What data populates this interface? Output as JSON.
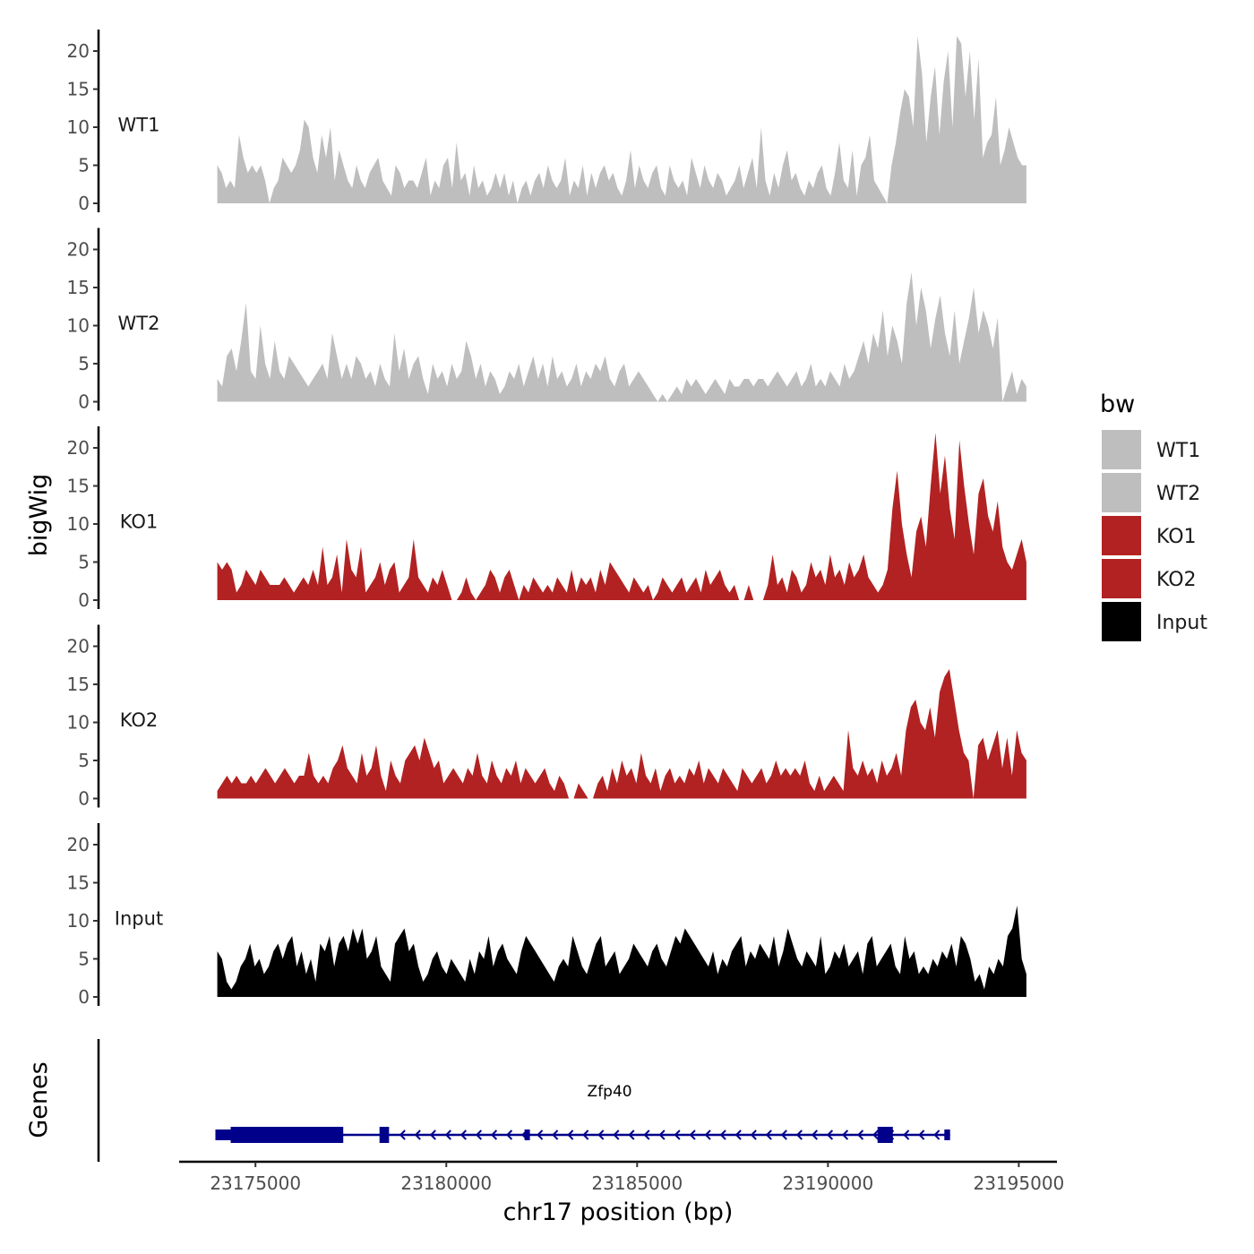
{
  "chart_data": {
    "type": "area",
    "chromosome": "chr17",
    "xlabel": "chr17 position (bp)",
    "ylabel": "bigWig",
    "genes_label": "Genes",
    "xlim": [
      23173000,
      23196000
    ],
    "x_ticks": [
      23175000,
      23180000,
      23185000,
      23190000,
      23195000
    ],
    "x_tick_labels": [
      "23175000",
      "23180000",
      "23185000",
      "23190000",
      "23195000"
    ],
    "ylim": [
      0,
      23
    ],
    "y_ticks": [
      0,
      5,
      10,
      15,
      20
    ],
    "y_tick_labels": [
      "0",
      "5",
      "10",
      "15",
      "20"
    ],
    "region": [
      23174000,
      23195200
    ],
    "legend": {
      "title": "bw",
      "items": [
        {
          "label": "WT1",
          "color": "#bebebe"
        },
        {
          "label": "WT2",
          "color": "#bebebe"
        },
        {
          "label": "KO1",
          "color": "#b22222"
        },
        {
          "label": "KO2",
          "color": "#b22222"
        },
        {
          "label": "Input",
          "color": "#000000"
        }
      ]
    },
    "tracks": [
      {
        "name": "WT1",
        "color": "#bebebe",
        "values": [
          5,
          4,
          2,
          3,
          2,
          9,
          6,
          4,
          5,
          4,
          5,
          3,
          0,
          2,
          3,
          6,
          5,
          4,
          5,
          7,
          11,
          10,
          6,
          4,
          9,
          6,
          10,
          3,
          7,
          5,
          3,
          2,
          5,
          3,
          2,
          4,
          5,
          6,
          3,
          2,
          1,
          5,
          4,
          2,
          3,
          3,
          2,
          4,
          6,
          1,
          3,
          2,
          5,
          6,
          2,
          8,
          3,
          4,
          1,
          5,
          2,
          3,
          1,
          2,
          4,
          2,
          4,
          1,
          3,
          0,
          2,
          3,
          1,
          3,
          4,
          2,
          5,
          3,
          2,
          3,
          6,
          1,
          3,
          2,
          5,
          1,
          4,
          2,
          4,
          5,
          3,
          4,
          2,
          1,
          3,
          7,
          2,
          5,
          3,
          2,
          4,
          5,
          2,
          1,
          5,
          3,
          2,
          3,
          1,
          6,
          4,
          2,
          5,
          3,
          2,
          4,
          3,
          1,
          2,
          3,
          5,
          2,
          4,
          6,
          2,
          10,
          3,
          1,
          4,
          2,
          5,
          7,
          3,
          4,
          2,
          1,
          3,
          2,
          4,
          5,
          2,
          1,
          4,
          8,
          3,
          2,
          7,
          1,
          5,
          6,
          9,
          3,
          2,
          1,
          0,
          5,
          8,
          12,
          15,
          14,
          10,
          22,
          17,
          8,
          14,
          18,
          9,
          16,
          20,
          10,
          22,
          21,
          14,
          20,
          11,
          19,
          6,
          8,
          9,
          14,
          5,
          7,
          10,
          8,
          6,
          5,
          5
        ]
      },
      {
        "name": "WT2",
        "color": "#bebebe",
        "values": [
          3,
          2,
          6,
          7,
          4,
          8,
          13,
          4,
          3,
          10,
          5,
          3,
          8,
          4,
          3,
          6,
          5,
          4,
          3,
          2,
          3,
          4,
          5,
          3,
          9,
          6,
          3,
          5,
          3,
          6,
          5,
          3,
          4,
          2,
          5,
          3,
          2,
          9,
          4,
          7,
          3,
          5,
          6,
          3,
          1,
          5,
          3,
          4,
          2,
          5,
          3,
          4,
          8,
          6,
          3,
          5,
          2,
          4,
          3,
          1,
          2,
          4,
          3,
          5,
          2,
          4,
          6,
          3,
          5,
          2,
          6,
          3,
          4,
          2,
          3,
          5,
          2,
          4,
          3,
          5,
          4,
          6,
          3,
          2,
          4,
          5,
          2,
          3,
          4,
          3,
          2,
          1,
          0,
          1,
          0,
          1,
          2,
          1,
          3,
          2,
          3,
          2,
          1,
          2,
          3,
          2,
          1,
          3,
          2,
          2,
          3,
          3,
          2,
          3,
          3,
          2,
          3,
          4,
          3,
          2,
          3,
          4,
          2,
          3,
          5,
          2,
          3,
          2,
          4,
          3,
          2,
          5,
          3,
          4,
          6,
          8,
          5,
          9,
          7,
          12,
          6,
          10,
          8,
          5,
          13,
          17,
          10,
          15,
          12,
          7,
          11,
          14,
          9,
          6,
          12,
          5,
          8,
          11,
          15,
          9,
          12,
          10,
          7,
          11,
          0,
          2,
          4,
          1,
          3,
          2
        ]
      },
      {
        "name": "KO1",
        "color": "#b22222",
        "values": [
          5,
          4,
          5,
          4,
          1,
          2,
          4,
          3,
          2,
          4,
          3,
          2,
          2,
          2,
          3,
          2,
          1,
          2,
          3,
          2,
          4,
          2,
          7,
          2,
          3,
          6,
          1,
          8,
          4,
          3,
          7,
          1,
          2,
          3,
          5,
          2,
          4,
          5,
          1,
          2,
          3,
          8,
          3,
          2,
          1,
          3,
          2,
          4,
          2,
          0,
          0,
          1,
          3,
          1,
          0,
          1,
          2,
          4,
          3,
          1,
          3,
          4,
          2,
          0,
          2,
          1,
          3,
          2,
          1,
          2,
          1,
          3,
          2,
          1,
          4,
          1,
          3,
          2,
          3,
          1,
          4,
          2,
          5,
          4,
          3,
          2,
          1,
          3,
          2,
          1,
          2,
          0,
          1,
          3,
          2,
          1,
          2,
          3,
          1,
          2,
          3,
          1,
          4,
          2,
          3,
          4,
          2,
          1,
          2,
          0,
          0,
          2,
          0,
          0,
          0,
          2,
          6,
          2,
          3,
          1,
          4,
          3,
          1,
          2,
          5,
          3,
          4,
          2,
          6,
          3,
          4,
          2,
          5,
          3,
          4,
          6,
          3,
          2,
          1,
          2,
          4,
          12,
          17,
          10,
          6,
          3,
          9,
          11,
          7,
          15,
          22,
          14,
          19,
          12,
          8,
          21,
          15,
          10,
          6,
          14,
          16,
          11,
          9,
          13,
          7,
          5,
          4,
          6,
          8,
          5
        ]
      },
      {
        "name": "KO2",
        "color": "#b22222",
        "values": [
          1,
          2,
          3,
          2,
          3,
          2,
          2,
          3,
          2,
          3,
          4,
          3,
          2,
          3,
          4,
          3,
          2,
          3,
          3,
          6,
          3,
          2,
          3,
          2,
          4,
          5,
          7,
          4,
          3,
          2,
          6,
          3,
          4,
          7,
          3,
          1,
          5,
          3,
          2,
          5,
          6,
          7,
          5,
          8,
          6,
          4,
          5,
          2,
          3,
          4,
          3,
          2,
          4,
          3,
          6,
          3,
          2,
          5,
          3,
          2,
          4,
          3,
          5,
          2,
          4,
          3,
          2,
          3,
          4,
          2,
          1,
          3,
          2,
          0,
          0,
          2,
          1,
          0,
          0,
          2,
          3,
          1,
          4,
          2,
          5,
          3,
          4,
          2,
          6,
          3,
          2,
          4,
          1,
          3,
          4,
          2,
          3,
          2,
          4,
          3,
          5,
          2,
          4,
          3,
          2,
          4,
          3,
          2,
          1,
          4,
          3,
          2,
          3,
          4,
          2,
          3,
          5,
          3,
          4,
          3,
          4,
          3,
          5,
          2,
          1,
          3,
          1,
          2,
          3,
          2,
          1,
          9,
          4,
          3,
          5,
          3,
          4,
          2,
          5,
          3,
          4,
          6,
          3,
          9,
          12,
          13,
          10,
          9,
          12,
          8,
          14,
          16,
          17,
          13,
          9,
          6,
          5,
          0,
          7,
          8,
          5,
          7,
          9,
          4,
          8,
          3,
          9,
          6,
          5
        ]
      },
      {
        "name": "Input",
        "color": "#000000",
        "values": [
          6,
          5,
          2,
          1,
          2,
          4,
          5,
          7,
          4,
          5,
          3,
          4,
          6,
          7,
          5,
          7,
          8,
          4,
          6,
          3,
          5,
          2,
          7,
          6,
          8,
          4,
          7,
          8,
          6,
          9,
          7,
          9,
          5,
          6,
          8,
          4,
          3,
          2,
          7,
          8,
          9,
          6,
          7,
          4,
          2,
          3,
          5,
          6,
          4,
          3,
          5,
          4,
          3,
          2,
          5,
          3,
          6,
          5,
          8,
          4,
          6,
          7,
          5,
          4,
          3,
          6,
          8,
          7,
          6,
          5,
          4,
          3,
          2,
          4,
          5,
          4,
          8,
          6,
          4,
          3,
          5,
          7,
          8,
          4,
          5,
          6,
          3,
          4,
          5,
          7,
          6,
          5,
          4,
          6,
          7,
          5,
          4,
          6,
          8,
          7,
          9,
          8,
          7,
          6,
          5,
          4,
          6,
          3,
          5,
          4,
          6,
          7,
          8,
          4,
          6,
          5,
          7,
          6,
          5,
          8,
          4,
          6,
          9,
          7,
          5,
          4,
          6,
          5,
          4,
          8,
          3,
          4,
          6,
          5,
          7,
          4,
          5,
          6,
          3,
          7,
          8,
          4,
          5,
          6,
          7,
          4,
          3,
          8,
          5,
          6,
          3,
          4,
          3,
          5,
          4,
          6,
          5,
          7,
          4,
          8,
          7,
          5,
          2,
          3,
          1,
          4,
          3,
          5,
          4,
          8,
          9,
          12,
          5,
          3
        ]
      }
    ],
    "gene": {
      "name": "Zfp40",
      "strand": "-",
      "color": "#00008b",
      "start": 23173950,
      "end": 23193200,
      "exons": [
        [
          23173950,
          23174350
        ],
        [
          23174350,
          23177300
        ],
        [
          23178250,
          23178500
        ],
        [
          23182050,
          23182150
        ],
        [
          23191300,
          23191700
        ],
        [
          23193050,
          23193200
        ]
      ],
      "thick_exons": [
        [
          23174350,
          23177300
        ],
        [
          23178250,
          23178500
        ],
        [
          23191300,
          23191700
        ]
      ],
      "arrow_start": 23178800,
      "arrow_end": 23192800,
      "arrow_count": 36
    }
  }
}
